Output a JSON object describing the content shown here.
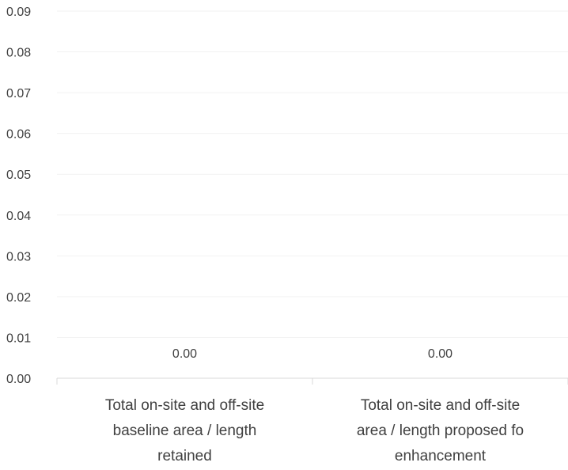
{
  "chart_data": {
    "type": "bar",
    "categories": [
      [
        "Total on-site and off-site",
        "baseline area / length",
        "retained"
      ],
      [
        "Total on-site and off-site",
        "area / length proposed fo",
        "enhancement"
      ]
    ],
    "values": [
      0,
      0
    ],
    "data_labels": [
      "0.00",
      "0.00"
    ],
    "ylim": [
      0,
      0.09
    ],
    "yticks": [
      "0.00",
      "0.01",
      "0.02",
      "0.03",
      "0.04",
      "0.05",
      "0.06",
      "0.07",
      "0.08",
      "0.09"
    ],
    "title": "",
    "xlabel": "",
    "ylabel": "",
    "grid": true,
    "legend": "none",
    "colors": {
      "grid": "#f2f2f2",
      "axis": "#d9d9d9",
      "text": "#404040"
    }
  }
}
